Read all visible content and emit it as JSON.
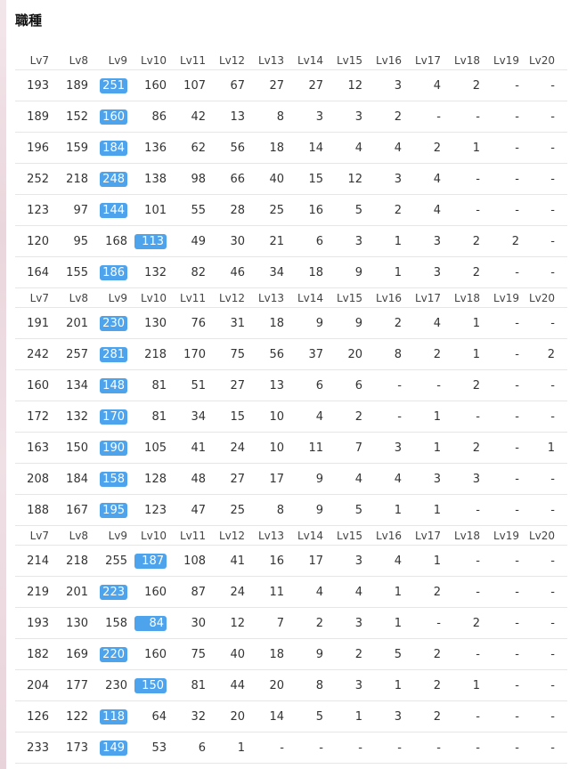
{
  "title": "職種",
  "colors": {
    "highlight": "#4da3ec"
  },
  "sections": [
    {
      "headers": [
        "Lv7",
        "Lv8",
        "Lv9",
        "Lv10",
        "Lv11",
        "Lv12",
        "Lv13",
        "Lv14",
        "Lv15",
        "Lv16",
        "Lv17",
        "Lv18",
        "Lv19",
        "Lv20"
      ],
      "rows": [
        {
          "cells": [
            "193",
            "189",
            "251",
            "160",
            "107",
            "67",
            "27",
            "27",
            "12",
            "3",
            "4",
            "2",
            "-",
            "-"
          ],
          "highlight": 2
        },
        {
          "cells": [
            "189",
            "152",
            "160",
            "86",
            "42",
            "13",
            "8",
            "3",
            "3",
            "2",
            "-",
            "-",
            "-",
            "-"
          ],
          "highlight": 2
        },
        {
          "cells": [
            "196",
            "159",
            "184",
            "136",
            "62",
            "56",
            "18",
            "14",
            "4",
            "4",
            "2",
            "1",
            "-",
            "-"
          ],
          "highlight": 2
        },
        {
          "cells": [
            "252",
            "218",
            "248",
            "138",
            "98",
            "66",
            "40",
            "15",
            "12",
            "3",
            "4",
            "-",
            "-",
            "-"
          ],
          "highlight": 2
        },
        {
          "cells": [
            "123",
            "97",
            "144",
            "101",
            "55",
            "28",
            "25",
            "16",
            "5",
            "2",
            "4",
            "-",
            "-",
            "-"
          ],
          "highlight": 2
        },
        {
          "cells": [
            "120",
            "95",
            "168",
            "113",
            "49",
            "30",
            "21",
            "6",
            "3",
            "1",
            "3",
            "2",
            "2",
            "-"
          ],
          "highlight": 3
        },
        {
          "cells": [
            "164",
            "155",
            "186",
            "132",
            "82",
            "46",
            "34",
            "18",
            "9",
            "1",
            "3",
            "2",
            "-",
            "-"
          ],
          "highlight": 2
        }
      ]
    },
    {
      "headers": [
        "Lv7",
        "Lv8",
        "Lv9",
        "Lv10",
        "Lv11",
        "Lv12",
        "Lv13",
        "Lv14",
        "Lv15",
        "Lv16",
        "Lv17",
        "Lv18",
        "Lv19",
        "Lv20"
      ],
      "rows": [
        {
          "cells": [
            "191",
            "201",
            "230",
            "130",
            "76",
            "31",
            "18",
            "9",
            "9",
            "2",
            "4",
            "1",
            "-",
            "-"
          ],
          "highlight": 2
        },
        {
          "cells": [
            "242",
            "257",
            "281",
            "218",
            "170",
            "75",
            "56",
            "37",
            "20",
            "8",
            "2",
            "1",
            "-",
            "2"
          ],
          "highlight": 2
        },
        {
          "cells": [
            "160",
            "134",
            "148",
            "81",
            "51",
            "27",
            "13",
            "6",
            "6",
            "-",
            "-",
            "2",
            "-",
            "-"
          ],
          "highlight": 2
        },
        {
          "cells": [
            "172",
            "132",
            "170",
            "81",
            "34",
            "15",
            "10",
            "4",
            "2",
            "-",
            "1",
            "-",
            "-",
            "-"
          ],
          "highlight": 2
        },
        {
          "cells": [
            "163",
            "150",
            "190",
            "105",
            "41",
            "24",
            "10",
            "11",
            "7",
            "3",
            "1",
            "2",
            "-",
            "1"
          ],
          "highlight": 2
        },
        {
          "cells": [
            "208",
            "184",
            "158",
            "128",
            "48",
            "27",
            "17",
            "9",
            "4",
            "4",
            "3",
            "3",
            "-",
            "-"
          ],
          "highlight": 2
        },
        {
          "cells": [
            "188",
            "167",
            "195",
            "123",
            "47",
            "25",
            "8",
            "9",
            "5",
            "1",
            "1",
            "-",
            "-",
            "-"
          ],
          "highlight": 2
        }
      ]
    },
    {
      "headers": [
        "Lv7",
        "Lv8",
        "Lv9",
        "Lv10",
        "Lv11",
        "Lv12",
        "Lv13",
        "Lv14",
        "Lv15",
        "Lv16",
        "Lv17",
        "Lv18",
        "Lv19",
        "Lv20"
      ],
      "rows": [
        {
          "cells": [
            "214",
            "218",
            "255",
            "187",
            "108",
            "41",
            "16",
            "17",
            "3",
            "4",
            "1",
            "-",
            "-",
            "-"
          ],
          "highlight": 3
        },
        {
          "cells": [
            "219",
            "201",
            "223",
            "160",
            "87",
            "24",
            "11",
            "4",
            "4",
            "1",
            "2",
            "-",
            "-",
            "-"
          ],
          "highlight": 2
        },
        {
          "cells": [
            "193",
            "130",
            "158",
            "84",
            "30",
            "12",
            "7",
            "2",
            "3",
            "1",
            "-",
            "2",
            "-",
            "-"
          ],
          "highlight": 3
        },
        {
          "cells": [
            "182",
            "169",
            "220",
            "160",
            "75",
            "40",
            "18",
            "9",
            "2",
            "5",
            "2",
            "-",
            "-",
            "-"
          ],
          "highlight": 2
        },
        {
          "cells": [
            "204",
            "177",
            "230",
            "150",
            "81",
            "44",
            "20",
            "8",
            "3",
            "1",
            "2",
            "1",
            "-",
            "-"
          ],
          "highlight": 3
        },
        {
          "cells": [
            "126",
            "122",
            "118",
            "64",
            "32",
            "20",
            "14",
            "5",
            "1",
            "3",
            "2",
            "-",
            "-",
            "-"
          ],
          "highlight": 2
        },
        {
          "cells": [
            "233",
            "173",
            "149",
            "53",
            "6",
            "1",
            "-",
            "-",
            "-",
            "-",
            "-",
            "-",
            "-",
            "-"
          ],
          "highlight": 2
        }
      ]
    }
  ]
}
